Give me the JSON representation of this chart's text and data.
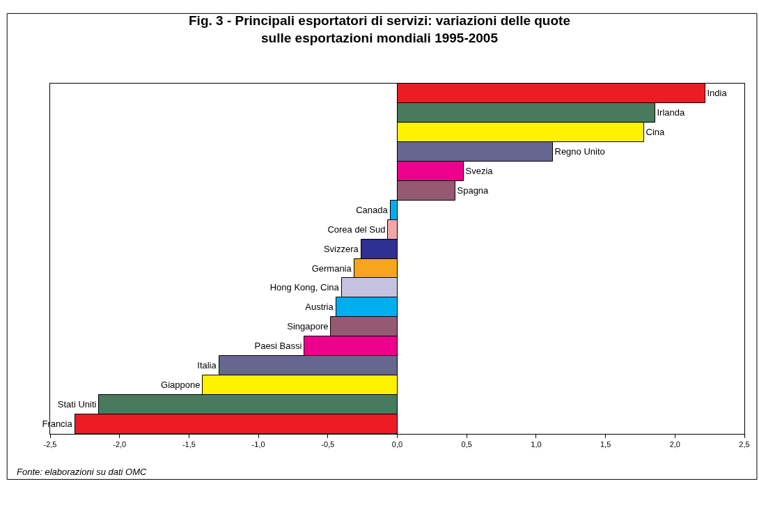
{
  "chart_data": {
    "type": "bar",
    "orientation": "horizontal",
    "title": "Fig. 3 - Principali esportatori di servizi: variazioni delle quote\nsulle esportazioni mondiali 1995-2005",
    "categories": [
      "India",
      "Irlanda",
      "Cina",
      "Regno Unito",
      "Svezia",
      "Spagna",
      "Canada",
      "Corea del Sud",
      "Svizzera",
      "Germania",
      "Hong Kong, Cina",
      "Austria",
      "Singapore",
      "Paesi Bassi",
      "Italia",
      "Giappone",
      "Stati Uniti",
      "Francia"
    ],
    "values": [
      2.22,
      1.86,
      1.78,
      1.12,
      0.48,
      0.42,
      -0.05,
      -0.07,
      -0.26,
      -0.31,
      -0.4,
      -0.44,
      -0.48,
      -0.67,
      -1.28,
      -1.4,
      -2.15,
      -2.32
    ],
    "colors": [
      "#ed1c24",
      "#4a7a5e",
      "#fff200",
      "#666690",
      "#ec008c",
      "#955a72",
      "#00aeef",
      "#f4a6a8",
      "#2e3192",
      "#f7a51e",
      "#c5c3e0",
      "#00aeef",
      "#955a72",
      "#ec008c",
      "#666690",
      "#fff200",
      "#4a7a5e",
      "#ed1c24"
    ],
    "xlim": [
      -2.5,
      2.5
    ],
    "xticks": [
      {
        "value": -2.5,
        "label": "-2,5"
      },
      {
        "value": -2,
        "label": "-2,0"
      },
      {
        "value": -1.5,
        "label": "-1,5"
      },
      {
        "value": -1,
        "label": "-1,0"
      },
      {
        "value": -0.5,
        "label": "-0,5"
      },
      {
        "value": 0,
        "label": "0,0"
      },
      {
        "value": 0.5,
        "label": "0,5"
      },
      {
        "value": 1,
        "label": "1,0"
      },
      {
        "value": 1.5,
        "label": "1,5"
      },
      {
        "value": 2,
        "label": "2,0"
      },
      {
        "value": 2.5,
        "label": "2,5"
      }
    ],
    "tick_labels": "x",
    "legend": false,
    "annotations": [
      "Fonte: elaborazioni su dati OMC"
    ]
  }
}
